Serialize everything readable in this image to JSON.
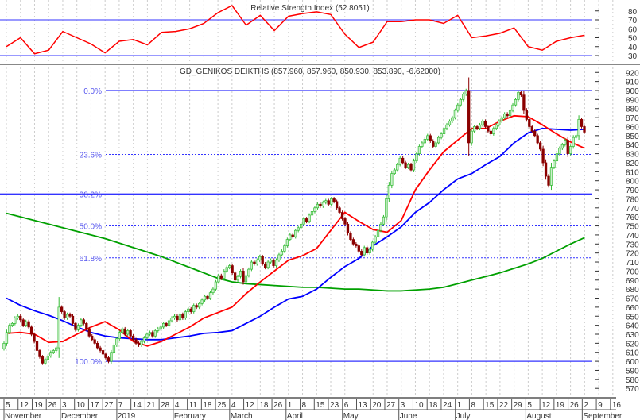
{
  "rsi_panel": {
    "title": "Relative Strength Index (52.8051)",
    "levels": [
      70,
      30
    ],
    "axis_ticks": [
      "80",
      "70",
      "60",
      "50",
      "40",
      "30"
    ],
    "line_color": "#ff0000",
    "level_color": "#3333ff"
  },
  "price_panel": {
    "title": "GD_GENIKOS DEIKTHS (857.960, 857.960, 850.930, 853.890, -6.62000)",
    "axis_ticks": [
      "920",
      "910",
      "900",
      "890",
      "880",
      "870",
      "860",
      "850",
      "840",
      "830",
      "820",
      "810",
      "800",
      "790",
      "780",
      "770",
      "760",
      "750",
      "740",
      "730",
      "720",
      "710",
      "700",
      "690",
      "680",
      "670",
      "660",
      "650",
      "640",
      "630",
      "620",
      "610",
      "600",
      "590",
      "580",
      "570"
    ],
    "fibonacci": [
      {
        "label": "0.0%",
        "value": 900,
        "style": "solid"
      },
      {
        "label": "23.6%",
        "value": 829.2,
        "style": "dotted"
      },
      {
        "label": "38.2%",
        "value": 785.4,
        "style": "solid"
      },
      {
        "label": "50.0%",
        "value": 750,
        "style": "dotted"
      },
      {
        "label": "61.8%",
        "value": 714.6,
        "style": "dotted"
      },
      {
        "label": "100.0%",
        "value": 600,
        "style": "solid"
      }
    ],
    "colors": {
      "up": "#33bb33",
      "up_fill": "#ccf0cc",
      "down": "#8b0000",
      "fib": "#3333ff",
      "ma_fast": "#ff0000",
      "ma_mid": "#0000ff",
      "ma_slow": "#00a000"
    }
  },
  "chart_data": {
    "type": "candlestick",
    "ylim": [
      565,
      925
    ],
    "rsi_ylim": [
      20,
      90
    ],
    "x_tick_labels": [
      "5",
      "12",
      "19",
      "26",
      "3",
      "10",
      "17",
      "27",
      "7",
      "14",
      "21",
      "28",
      "4",
      "11",
      "18",
      "25",
      "4",
      "12",
      "18",
      "26",
      "1",
      "8",
      "15",
      "23",
      "6",
      "13",
      "20",
      "27",
      "3",
      "10",
      "18",
      "24",
      "1",
      "8",
      "15",
      "22",
      "29",
      "5",
      "12",
      "19",
      "26",
      "2",
      "9",
      "16"
    ],
    "month_labels": [
      {
        "tick": 0,
        "label": "November"
      },
      {
        "tick": 4,
        "label": "December"
      },
      {
        "tick": 8,
        "label": "2019"
      },
      {
        "tick": 12,
        "label": "February"
      },
      {
        "tick": 16,
        "label": "March"
      },
      {
        "tick": 20,
        "label": "April"
      },
      {
        "tick": 24,
        "label": "May"
      },
      {
        "tick": 28,
        "label": "June"
      },
      {
        "tick": 32,
        "label": "July"
      },
      {
        "tick": 37,
        "label": "August"
      },
      {
        "tick": 41,
        "label": "September"
      }
    ],
    "closes": [
      620,
      632,
      640,
      642,
      648,
      650,
      646,
      640,
      644,
      638,
      630,
      622,
      612,
      605,
      598,
      602,
      606,
      610,
      612,
      615,
      660,
      655,
      648,
      652,
      650,
      642,
      635,
      640,
      646,
      642,
      636,
      628,
      624,
      620,
      615,
      612,
      608,
      604,
      600,
      610,
      618,
      625,
      632,
      636,
      630,
      634,
      628,
      624,
      620,
      618,
      622,
      626,
      630,
      632,
      628,
      634,
      636,
      638,
      642,
      640,
      645,
      648,
      650,
      646,
      652,
      648,
      655,
      658,
      655,
      662,
      660,
      664,
      668,
      672,
      670,
      676,
      680,
      688,
      695,
      692,
      700,
      704,
      706,
      698,
      690,
      694,
      700,
      688,
      695,
      702,
      710,
      708,
      712,
      716,
      708,
      704,
      710,
      712,
      706,
      712,
      718,
      722,
      728,
      735,
      740,
      738,
      745,
      748,
      752,
      758,
      755,
      762,
      766,
      770,
      774,
      772,
      776,
      778,
      774,
      780,
      777,
      770,
      765,
      758,
      752,
      742,
      735,
      730,
      728,
      722,
      718,
      726,
      720,
      724,
      732,
      738,
      745,
      752,
      760,
      780,
      795,
      808,
      812,
      818,
      825,
      820,
      815,
      818,
      812,
      822,
      830,
      838,
      842,
      846,
      850,
      844,
      838,
      842,
      848,
      852,
      858,
      862,
      866,
      870,
      878,
      884,
      890,
      896,
      900,
      842,
      855,
      860,
      858,
      862,
      866,
      860,
      855,
      852,
      858,
      862,
      866,
      870,
      874,
      872,
      878,
      884,
      890,
      898,
      895,
      878,
      868,
      860,
      855,
      850,
      842,
      835,
      820,
      805,
      795,
      815,
      822,
      830,
      836,
      840,
      845,
      830,
      838,
      848,
      850,
      868,
      860,
      853.89
    ],
    "moving_averages_per_week_tick": {
      "fast": [
        631,
        632,
        630,
        621,
        622,
        630,
        638,
        644,
        635,
        622,
        617,
        622,
        630,
        638,
        648,
        654,
        660,
        675,
        688,
        700,
        712,
        717,
        725,
        745,
        765,
        755,
        746,
        743,
        756,
        790,
        812,
        832,
        845,
        858,
        858,
        866,
        872,
        871,
        862,
        852,
        843,
        836
      ],
      "mid": [
        670,
        662,
        656,
        651,
        645,
        638,
        632,
        628,
        626,
        625,
        624,
        624,
        626,
        628,
        631,
        632,
        634,
        642,
        650,
        660,
        669,
        672,
        680,
        693,
        705,
        714,
        728,
        738,
        749,
        765,
        776,
        790,
        802,
        808,
        818,
        827,
        842,
        853,
        858,
        857,
        856,
        857
      ],
      "slow": [
        764,
        760,
        756,
        752,
        748,
        744,
        740,
        736,
        731,
        726,
        721,
        716,
        710,
        704,
        698,
        692,
        688,
        686,
        685,
        684,
        683,
        682,
        682,
        681,
        680,
        680,
        679,
        678,
        678,
        679,
        680,
        682,
        686,
        690,
        694,
        698,
        703,
        708,
        714,
        722,
        730,
        737
      ]
    },
    "rsi_per_week_tick": [
      40,
      50,
      32,
      36,
      57,
      50,
      43,
      33,
      46,
      48,
      42,
      56,
      57,
      60,
      66,
      78,
      86,
      64,
      75,
      58,
      74,
      77,
      79,
      76,
      54,
      39,
      45,
      68,
      68,
      70,
      70,
      66,
      75,
      50,
      52,
      55,
      61,
      40,
      36,
      46,
      50,
      52.8
    ]
  }
}
